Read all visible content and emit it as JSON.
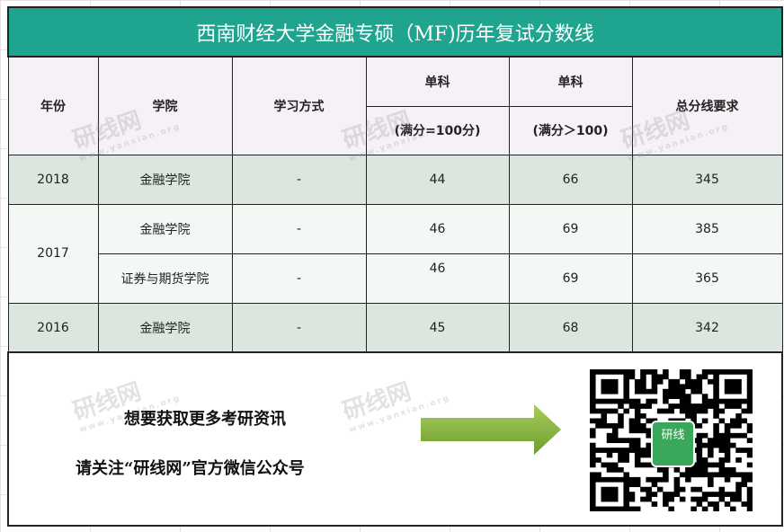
{
  "title": "西南财经大学金融专硕（MF)历年复试分数线",
  "headers": {
    "year": "年份",
    "college": "学院",
    "study_mode": "学习方式",
    "single1": "单科",
    "single1_sub": "(满分=100分)",
    "single2": "单科",
    "single2_sub": "(满分＞100)",
    "total": "总分线要求"
  },
  "rows": [
    {
      "year": "2018",
      "college": "金融学院",
      "mode": "-",
      "s1": "44",
      "s2": "66",
      "total": "345"
    },
    {
      "year": "2017",
      "college": "金融学院",
      "mode": "-",
      "s1": "46",
      "s2": "69",
      "total": "385"
    },
    {
      "college": "证券与期货学院",
      "mode": "-",
      "s1": "46",
      "s2": "69",
      "total": "365"
    },
    {
      "year": "2016",
      "college": "金融学院",
      "mode": "-",
      "s1": "45",
      "s2": "68",
      "total": "342"
    }
  ],
  "promo": {
    "line1": "想要获取更多考研资讯",
    "line2": "请关注“研线网”官方微信公众号",
    "qr_logo": "研线"
  },
  "watermark": {
    "name": "研线网",
    "url": "www.yanxian.org"
  },
  "colors": {
    "title_bg": "#1fa58f",
    "arrow": "#7fb03a"
  }
}
